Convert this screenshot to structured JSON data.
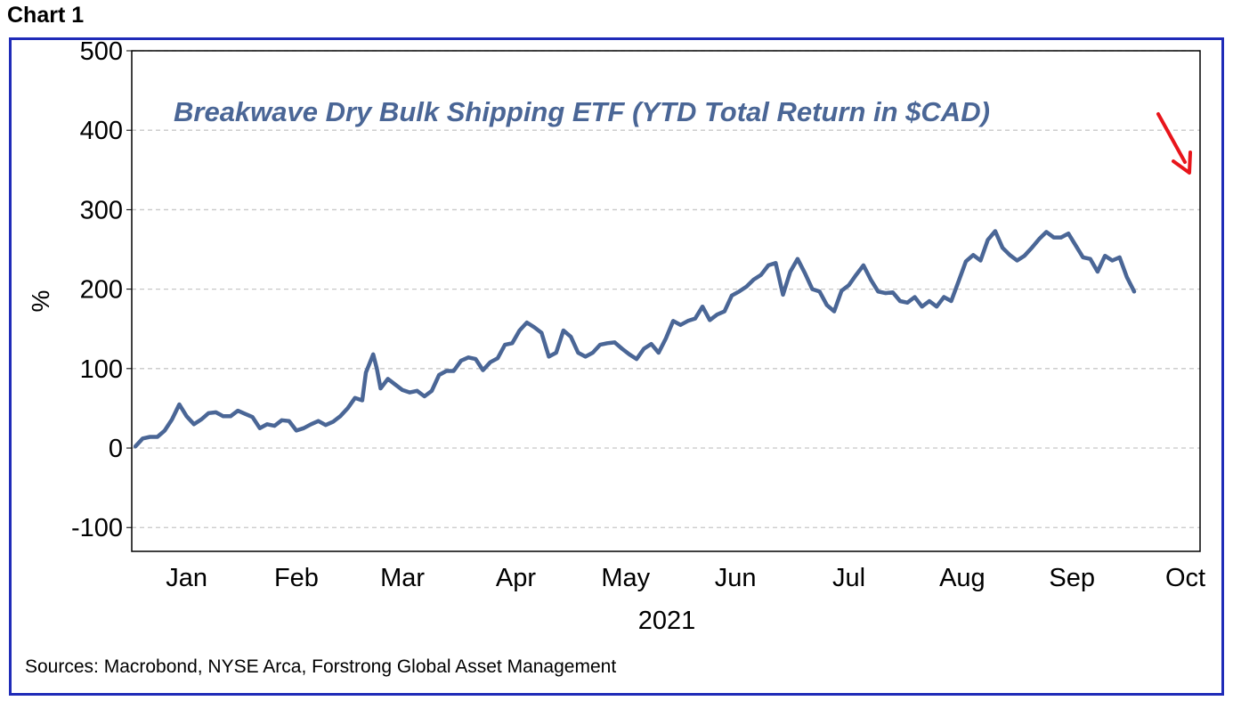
{
  "heading": "Chart 1",
  "source": "Sources: Macrobond, NYSE Arca, Forstrong Global Asset Management",
  "colors": {
    "frame": "#1f2bb8",
    "line": "#4a6696",
    "arrow": "#e8151b",
    "grid": "#c8c8c8"
  },
  "chart_data": {
    "type": "line",
    "title": "Breakwave Dry Bulk Shipping ETF (YTD Total Return in $CAD)",
    "ylabel": "%",
    "xlabel": "2021",
    "ylim": [
      -130,
      500
    ],
    "yticks": [
      -100,
      0,
      100,
      200,
      300,
      400,
      500
    ],
    "x_range": [
      "2021-01-01",
      "2021-10-20"
    ],
    "month_labels": [
      {
        "label": "Jan",
        "date": "2021-01-16"
      },
      {
        "label": "Feb",
        "date": "2021-02-15"
      },
      {
        "label": "Mar",
        "date": "2021-03-16"
      },
      {
        "label": "Apr",
        "date": "2021-04-16"
      },
      {
        "label": "May",
        "date": "2021-05-16"
      },
      {
        "label": "Jun",
        "date": "2021-06-15"
      },
      {
        "label": "Jul",
        "date": "2021-07-16"
      },
      {
        "label": "Aug",
        "date": "2021-08-16"
      },
      {
        "label": "Sep",
        "date": "2021-09-15"
      },
      {
        "label": "Oct",
        "date": "2021-10-16"
      }
    ],
    "grid": true,
    "annotation": "red downward arrow at end of series",
    "series": [
      {
        "values": [
          [
            "2021-01-02",
            2
          ],
          [
            "2021-01-04",
            12
          ],
          [
            "2021-01-06",
            14
          ],
          [
            "2021-01-08",
            14
          ],
          [
            "2021-01-10",
            22
          ],
          [
            "2021-01-12",
            36
          ],
          [
            "2021-01-14",
            55
          ],
          [
            "2021-01-16",
            40
          ],
          [
            "2021-01-18",
            30
          ],
          [
            "2021-01-20",
            36
          ],
          [
            "2021-01-22",
            44
          ],
          [
            "2021-01-24",
            45
          ],
          [
            "2021-01-26",
            40
          ],
          [
            "2021-01-28",
            40
          ],
          [
            "2021-01-30",
            47
          ],
          [
            "2021-02-01",
            43
          ],
          [
            "2021-02-03",
            39
          ],
          [
            "2021-02-05",
            25
          ],
          [
            "2021-02-07",
            30
          ],
          [
            "2021-02-09",
            28
          ],
          [
            "2021-02-11",
            35
          ],
          [
            "2021-02-13",
            34
          ],
          [
            "2021-02-15",
            22
          ],
          [
            "2021-02-17",
            25
          ],
          [
            "2021-02-19",
            30
          ],
          [
            "2021-02-21",
            34
          ],
          [
            "2021-02-23",
            29
          ],
          [
            "2021-02-25",
            33
          ],
          [
            "2021-02-27",
            40
          ],
          [
            "2021-03-01",
            50
          ],
          [
            "2021-03-03",
            63
          ],
          [
            "2021-03-05",
            60
          ],
          [
            "2021-03-06",
            95
          ],
          [
            "2021-03-08",
            118
          ],
          [
            "2021-03-09",
            100
          ],
          [
            "2021-03-10",
            75
          ],
          [
            "2021-03-12",
            87
          ],
          [
            "2021-03-14",
            80
          ],
          [
            "2021-03-16",
            73
          ],
          [
            "2021-03-18",
            70
          ],
          [
            "2021-03-20",
            72
          ],
          [
            "2021-03-22",
            65
          ],
          [
            "2021-03-24",
            72
          ],
          [
            "2021-03-26",
            92
          ],
          [
            "2021-03-28",
            97
          ],
          [
            "2021-03-30",
            97
          ],
          [
            "2021-04-01",
            110
          ],
          [
            "2021-04-03",
            114
          ],
          [
            "2021-04-05",
            112
          ],
          [
            "2021-04-07",
            98
          ],
          [
            "2021-04-09",
            108
          ],
          [
            "2021-04-11",
            113
          ],
          [
            "2021-04-13",
            130
          ],
          [
            "2021-04-15",
            132
          ],
          [
            "2021-04-17",
            148
          ],
          [
            "2021-04-19",
            158
          ],
          [
            "2021-04-21",
            152
          ],
          [
            "2021-04-23",
            145
          ],
          [
            "2021-04-25",
            115
          ],
          [
            "2021-04-27",
            120
          ],
          [
            "2021-04-29",
            148
          ],
          [
            "2021-05-01",
            140
          ],
          [
            "2021-05-03",
            120
          ],
          [
            "2021-05-05",
            115
          ],
          [
            "2021-05-07",
            120
          ],
          [
            "2021-05-09",
            130
          ],
          [
            "2021-05-11",
            132
          ],
          [
            "2021-05-13",
            133
          ],
          [
            "2021-05-15",
            125
          ],
          [
            "2021-05-17",
            118
          ],
          [
            "2021-05-19",
            112
          ],
          [
            "2021-05-21",
            125
          ],
          [
            "2021-05-23",
            131
          ],
          [
            "2021-05-25",
            120
          ],
          [
            "2021-05-27",
            138
          ],
          [
            "2021-05-29",
            160
          ],
          [
            "2021-05-31",
            155
          ],
          [
            "2021-06-02",
            160
          ],
          [
            "2021-06-04",
            163
          ],
          [
            "2021-06-06",
            178
          ],
          [
            "2021-06-08",
            161
          ],
          [
            "2021-06-10",
            168
          ],
          [
            "2021-06-12",
            172
          ],
          [
            "2021-06-14",
            192
          ],
          [
            "2021-06-16",
            197
          ],
          [
            "2021-06-18",
            203
          ],
          [
            "2021-06-20",
            212
          ],
          [
            "2021-06-22",
            218
          ],
          [
            "2021-06-24",
            230
          ],
          [
            "2021-06-26",
            233
          ],
          [
            "2021-06-28",
            193
          ],
          [
            "2021-06-30",
            222
          ],
          [
            "2021-07-02",
            238
          ],
          [
            "2021-07-04",
            220
          ],
          [
            "2021-07-06",
            200
          ],
          [
            "2021-07-08",
            197
          ],
          [
            "2021-07-10",
            180
          ],
          [
            "2021-07-12",
            172
          ],
          [
            "2021-07-14",
            198
          ],
          [
            "2021-07-16",
            205
          ],
          [
            "2021-07-18",
            218
          ],
          [
            "2021-07-20",
            230
          ],
          [
            "2021-07-22",
            212
          ],
          [
            "2021-07-24",
            197
          ],
          [
            "2021-07-26",
            195
          ],
          [
            "2021-07-28",
            196
          ],
          [
            "2021-07-30",
            185
          ],
          [
            "2021-08-01",
            183
          ],
          [
            "2021-08-03",
            190
          ],
          [
            "2021-08-05",
            178
          ],
          [
            "2021-08-07",
            185
          ],
          [
            "2021-08-09",
            178
          ],
          [
            "2021-08-11",
            190
          ],
          [
            "2021-08-13",
            185
          ],
          [
            "2021-08-15",
            210
          ],
          [
            "2021-08-17",
            235
          ],
          [
            "2021-08-19",
            243
          ],
          [
            "2021-08-21",
            236
          ],
          [
            "2021-08-23",
            262
          ],
          [
            "2021-08-25",
            273
          ],
          [
            "2021-08-27",
            252
          ],
          [
            "2021-08-29",
            243
          ],
          [
            "2021-08-31",
            236
          ],
          [
            "2021-09-02",
            242
          ],
          [
            "2021-09-04",
            252
          ],
          [
            "2021-09-06",
            263
          ],
          [
            "2021-09-08",
            272
          ],
          [
            "2021-09-10",
            265
          ],
          [
            "2021-09-12",
            265
          ],
          [
            "2021-09-14",
            270
          ],
          [
            "2021-09-16",
            255
          ],
          [
            "2021-09-18",
            240
          ],
          [
            "2021-09-20",
            238
          ],
          [
            "2021-09-22",
            222
          ],
          [
            "2021-09-24",
            242
          ],
          [
            "2021-09-26",
            236
          ],
          [
            "2021-09-28",
            240
          ],
          [
            "2021-09-30",
            215
          ],
          [
            "2021-10-02",
            197
          ]
        ]
      }
    ]
  }
}
